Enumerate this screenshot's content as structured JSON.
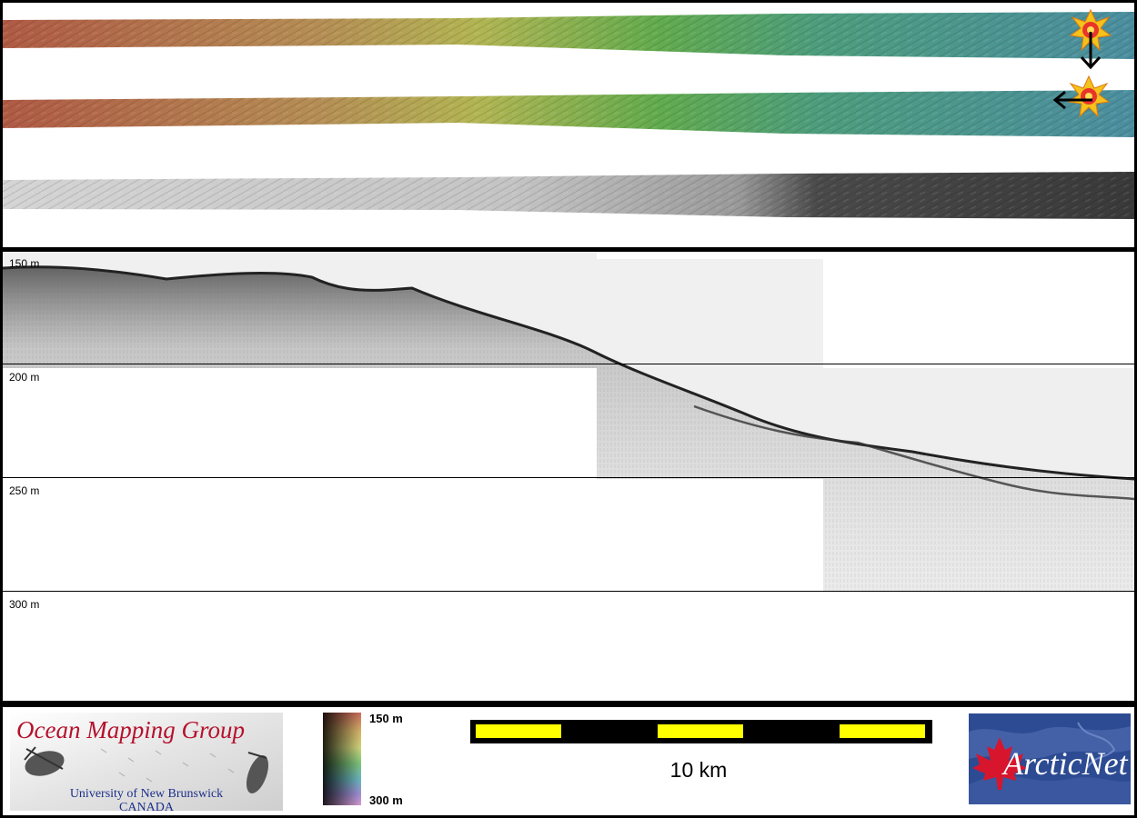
{
  "profile": {
    "depth_labels": [
      "150 m",
      "200 m",
      "250 m",
      "300 m"
    ]
  },
  "legend": {
    "omg_title": "Ocean Mapping Group",
    "omg_university": "University of New Brunswick",
    "omg_country": "CANADA",
    "colorbar_top": "150 m",
    "colorbar_bottom": "300 m",
    "scale_label": "10 km",
    "arcticnet_text": "ArcticNet"
  },
  "colors": {
    "scale_yellow": "#ffff00",
    "brand_red": "#b5122d",
    "brand_blue": "#1c2f8a",
    "arcticnet_blue": "#2d4b93"
  },
  "icons": [
    "explosion-marker-icon",
    "arrow-down-icon",
    "arrow-left-icon",
    "maple-leaf-icon"
  ]
}
